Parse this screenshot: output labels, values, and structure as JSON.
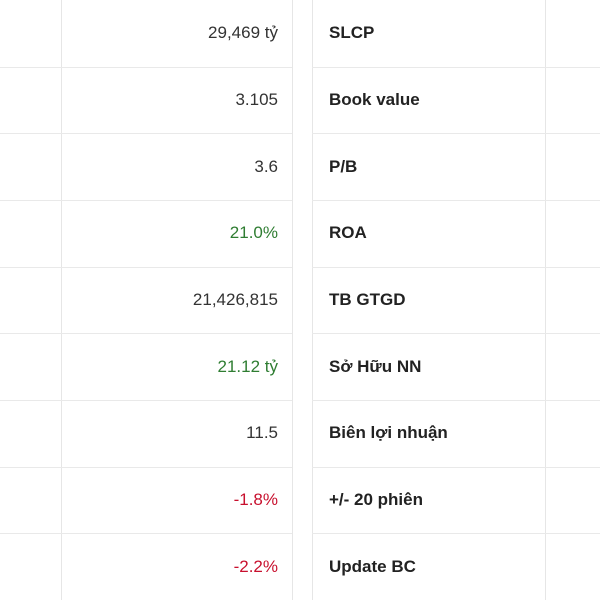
{
  "table": {
    "rows": [
      {
        "value": "29,469 tỷ",
        "label": "SLCP",
        "color": "#333333"
      },
      {
        "value": "3.105",
        "label": "Book value",
        "color": "#333333"
      },
      {
        "value": "3.6",
        "label": "P/B",
        "color": "#333333"
      },
      {
        "value": "21.0%",
        "label": "ROA",
        "color": "#2f7d32"
      },
      {
        "value": "21,426,815",
        "label": "TB GTGD",
        "color": "#333333"
      },
      {
        "value": "21.12 tỷ",
        "label": "Sở Hữu NN",
        "color": "#2f7d32"
      },
      {
        "value": "11.5",
        "label": "Biên lợi nhuận",
        "color": "#333333"
      },
      {
        "value": "-1.8%",
        "label": "+/- 20 phiên",
        "color": "#c8102e"
      },
      {
        "value": "-2.2%",
        "label": "Update BC",
        "color": "#c8102e"
      }
    ]
  }
}
